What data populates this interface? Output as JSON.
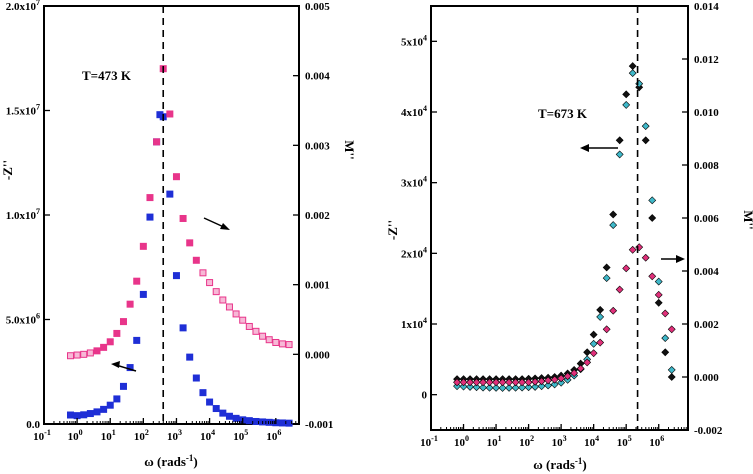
{
  "chart_data": [
    {
      "type": "scatter",
      "panel": "left",
      "annotation": "T=473 K",
      "xlabel_main": "ω (rads",
      "xlabel_sup": "-1",
      "xlabel_tail": ")",
      "ylabel_left": "-Z''",
      "ylabel_right": "M''",
      "xscale": "log",
      "xlim_exp": [
        -1,
        6.7
      ],
      "x_tick_exps": [
        -1,
        0,
        1,
        2,
        3,
        4,
        5,
        6
      ],
      "y_left": {
        "lim": [
          0,
          20000000
        ],
        "ticks": [
          0,
          5000000,
          10000000,
          15000000,
          20000000
        ],
        "tick_labels": [
          "0.0",
          "5.0x10^6",
          "1.0x10^7",
          "1.5x10^7",
          "2.0x10^7"
        ]
      },
      "y_right": {
        "lim": [
          -0.001,
          0.005
        ],
        "ticks": [
          -0.001,
          0,
          0.001,
          0.002,
          0.003,
          0.004,
          0.005
        ],
        "tick_labels": [
          "-0.001",
          "0.000",
          "0.001",
          "0.002",
          "0.003",
          "0.004",
          "0.005"
        ]
      },
      "vline_log_omega": 2.6,
      "series": [
        {
          "name": "-Z''",
          "axis": "left",
          "marker": "square",
          "color": "#1f2fd6",
          "log_omega": [
            -0.2,
            0.0,
            0.2,
            0.4,
            0.6,
            0.8,
            1.0,
            1.2,
            1.4,
            1.6,
            1.8,
            2.0,
            2.2,
            2.4,
            2.5,
            2.6,
            2.8,
            3.0,
            3.2,
            3.4,
            3.6,
            3.8,
            4.0,
            4.2,
            4.4,
            4.6,
            4.8,
            5.0,
            5.2,
            5.4,
            5.6,
            5.8,
            6.0,
            6.2,
            6.4
          ],
          "values": [
            430000,
            400000,
            440000,
            500000,
            580000,
            700000,
            900000,
            1200000,
            1800000,
            2700000,
            4000000,
            6200000,
            9900000,
            13500000,
            14800000,
            14700000,
            11000000,
            7100000,
            4600000,
            3200000,
            2200000,
            1500000,
            1050000,
            740000,
            520000,
            370000,
            270000,
            200000,
            160000,
            120000,
            100000,
            80000,
            60000,
            50000,
            40000
          ]
        },
        {
          "name": "M''",
          "axis": "right",
          "marker": "square",
          "color": "#e8358a",
          "log_omega": [
            -0.2,
            0.0,
            0.2,
            0.4,
            0.6,
            0.8,
            1.0,
            1.2,
            1.4,
            1.6,
            1.8,
            2.0,
            2.2,
            2.4,
            2.6,
            2.8,
            3.0,
            3.2,
            3.4,
            3.6,
            3.8,
            4.0,
            4.2,
            4.4,
            4.6,
            4.8,
            5.0,
            5.2,
            5.4,
            5.6,
            5.8,
            6.0,
            6.2,
            6.4
          ],
          "values": [
            -2e-05,
            -1e-05,
            0.0,
            2e-05,
            5e-05,
            0.0001,
            0.00018,
            0.0003,
            0.00047,
            0.00072,
            0.00105,
            0.00155,
            0.00225,
            0.00305,
            0.0041,
            0.00345,
            0.00255,
            0.00195,
            0.0016,
            0.00135,
            0.00117,
            0.00103,
            0.0009,
            0.00078,
            0.00068,
            0.00058,
            0.00049,
            0.0004,
            0.00033,
            0.00026,
            0.00021,
            0.00017,
            0.00015,
            0.00014
          ]
        }
      ]
    },
    {
      "type": "scatter",
      "panel": "right",
      "annotation": "T=673 K",
      "xlabel_main": "ω (rads",
      "xlabel_sup": "-1",
      "xlabel_tail": ")",
      "ylabel_left": "-Z''",
      "ylabel_right": "M''",
      "xscale": "log",
      "xlim_exp": [
        -1,
        6.9
      ],
      "x_tick_exps": [
        -1,
        0,
        1,
        2,
        3,
        4,
        5,
        6
      ],
      "y_left": {
        "lim": [
          -5000,
          55000
        ],
        "ticks": [
          0,
          10000,
          20000,
          30000,
          40000,
          50000
        ],
        "tick_labels": [
          "0",
          "1x10^4",
          "2x10^4",
          "3x10^4",
          "4x10^4",
          "5x10^4"
        ]
      },
      "y_right": {
        "lim": [
          -0.002,
          0.014
        ],
        "ticks": [
          -0.002,
          0,
          0.002,
          0.004,
          0.006,
          0.008,
          0.01,
          0.012,
          0.014
        ],
        "tick_labels": [
          "-0.002",
          "0.000",
          "0.002",
          "0.004",
          "0.006",
          "0.008",
          "0.010",
          "0.012",
          "0.014"
        ]
      },
      "vline_log_omega": 5.35,
      "series": [
        {
          "name": "-Z'' (black)",
          "axis": "left",
          "marker": "diamond",
          "color": "#111111",
          "log_omega": [
            -0.2,
            0.0,
            0.2,
            0.4,
            0.6,
            0.8,
            1.0,
            1.2,
            1.4,
            1.6,
            1.8,
            2.0,
            2.2,
            2.4,
            2.6,
            2.8,
            3.0,
            3.2,
            3.4,
            3.6,
            3.8,
            4.0,
            4.2,
            4.4,
            4.6,
            4.8,
            5.0,
            5.2,
            5.4,
            5.6,
            5.8,
            6.0,
            6.2,
            6.4
          ],
          "values": [
            2200,
            2200,
            2200,
            2200,
            2200,
            2200,
            2200,
            2200,
            2200,
            2200,
            2200,
            2250,
            2300,
            2350,
            2400,
            2500,
            2700,
            3000,
            3500,
            4400,
            6000,
            8500,
            12000,
            18000,
            25500,
            36000,
            42500,
            46500,
            43500,
            36000,
            25000,
            13000,
            6000,
            2500
          ]
        },
        {
          "name": "-Z'' (cyan)",
          "axis": "left",
          "marker": "diamond",
          "color": "#3fb8c9",
          "log_omega": [
            -0.2,
            0.0,
            0.2,
            0.4,
            0.6,
            0.8,
            1.0,
            1.2,
            1.4,
            1.6,
            1.8,
            2.0,
            2.2,
            2.4,
            2.6,
            2.8,
            3.0,
            3.2,
            3.4,
            3.6,
            3.8,
            4.0,
            4.2,
            4.4,
            4.6,
            4.8,
            5.0,
            5.2,
            5.4,
            5.6,
            5.8,
            6.0,
            6.2,
            6.4
          ],
          "values": [
            1200,
            1150,
            1100,
            1050,
            1000,
            980,
            960,
            950,
            960,
            980,
            1000,
            1050,
            1100,
            1200,
            1300,
            1450,
            1700,
            2100,
            2700,
            3600,
            5000,
            7200,
            11000,
            16500,
            24000,
            34000,
            41000,
            45500,
            44000,
            38000,
            27500,
            16000,
            8000,
            3500
          ]
        },
        {
          "name": "M''",
          "axis": "right",
          "marker": "diamond",
          "color": "#e0307a",
          "log_omega": [
            -0.2,
            0.0,
            0.2,
            0.4,
            0.6,
            0.8,
            1.0,
            1.2,
            1.4,
            1.6,
            1.8,
            2.0,
            2.2,
            2.4,
            2.6,
            2.8,
            3.0,
            3.2,
            3.4,
            3.6,
            3.8,
            4.0,
            4.2,
            4.4,
            4.6,
            4.8,
            5.0,
            5.2,
            5.4,
            5.6,
            5.8,
            6.0,
            6.2,
            6.4
          ],
          "values": [
            -0.0002,
            -0.0002,
            -0.0002,
            -0.0002,
            -0.0002,
            -0.0002,
            -0.0002,
            -0.0002,
            -0.0002,
            -0.0002,
            -0.0002,
            -0.0002,
            -0.00018,
            -0.00016,
            -0.00013,
            -0.0001,
            -5e-05,
            3e-05,
            0.00015,
            0.00032,
            0.00055,
            0.0009,
            0.0013,
            0.0018,
            0.0025,
            0.0033,
            0.0041,
            0.0048,
            0.0049,
            0.0045,
            0.0038,
            0.0031,
            0.0024,
            0.0018
          ]
        }
      ]
    }
  ]
}
